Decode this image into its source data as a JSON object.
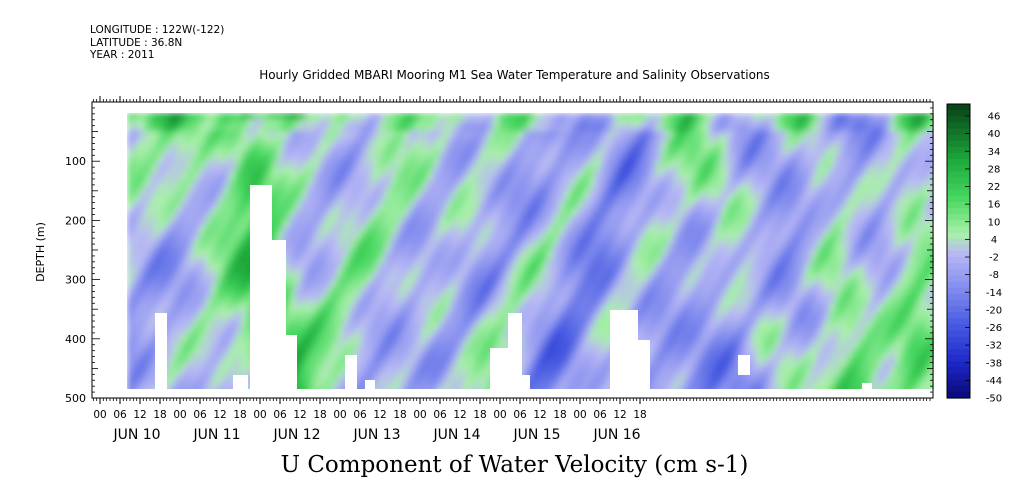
{
  "header": {
    "longitude": "LONGITUDE : 122W(-122)",
    "latitude": "LATITUDE : 36.8N",
    "year": "YEAR : 2011"
  },
  "chart_data": {
    "type": "heatmap",
    "title": "Hourly Gridded MBARI Mooring M1 Sea Water Temperature and Salinity Observations",
    "xlabel": "U Component of Water Velocity (cm s-1)",
    "ylabel": "DEPTH (m)",
    "ylim": [
      500,
      0
    ],
    "y_ticks": [
      100,
      200,
      300,
      400,
      500
    ],
    "x_hour_ticks": [
      "00",
      "06",
      "12",
      "18",
      "00",
      "06",
      "12",
      "18",
      "00",
      "06",
      "12",
      "18",
      "00",
      "06",
      "12",
      "18",
      "00",
      "06",
      "12",
      "18",
      "00",
      "06",
      "12",
      "18",
      "00",
      "06",
      "12",
      "18"
    ],
    "x_day_labels": [
      "JUN 10",
      "JUN 11",
      "JUN 12",
      "JUN 13",
      "JUN 14",
      "JUN 15",
      "JUN 16"
    ],
    "data_extent": {
      "depth_top": 15,
      "depth_bottom": 485
    },
    "colorbar_levels": [
      46,
      40,
      34,
      28,
      22,
      16,
      10,
      4,
      -2,
      -8,
      -14,
      -20,
      -26,
      -32,
      -38,
      -44,
      -50
    ],
    "colors": {
      "strong_positive": "#0b4a17",
      "positive": "#2fc44c",
      "weak_positive": "#a6f0a6",
      "weak_negative": "#b4b4f4",
      "negative": "#6e78ec",
      "strong_negative": "#0a0a8c"
    }
  }
}
